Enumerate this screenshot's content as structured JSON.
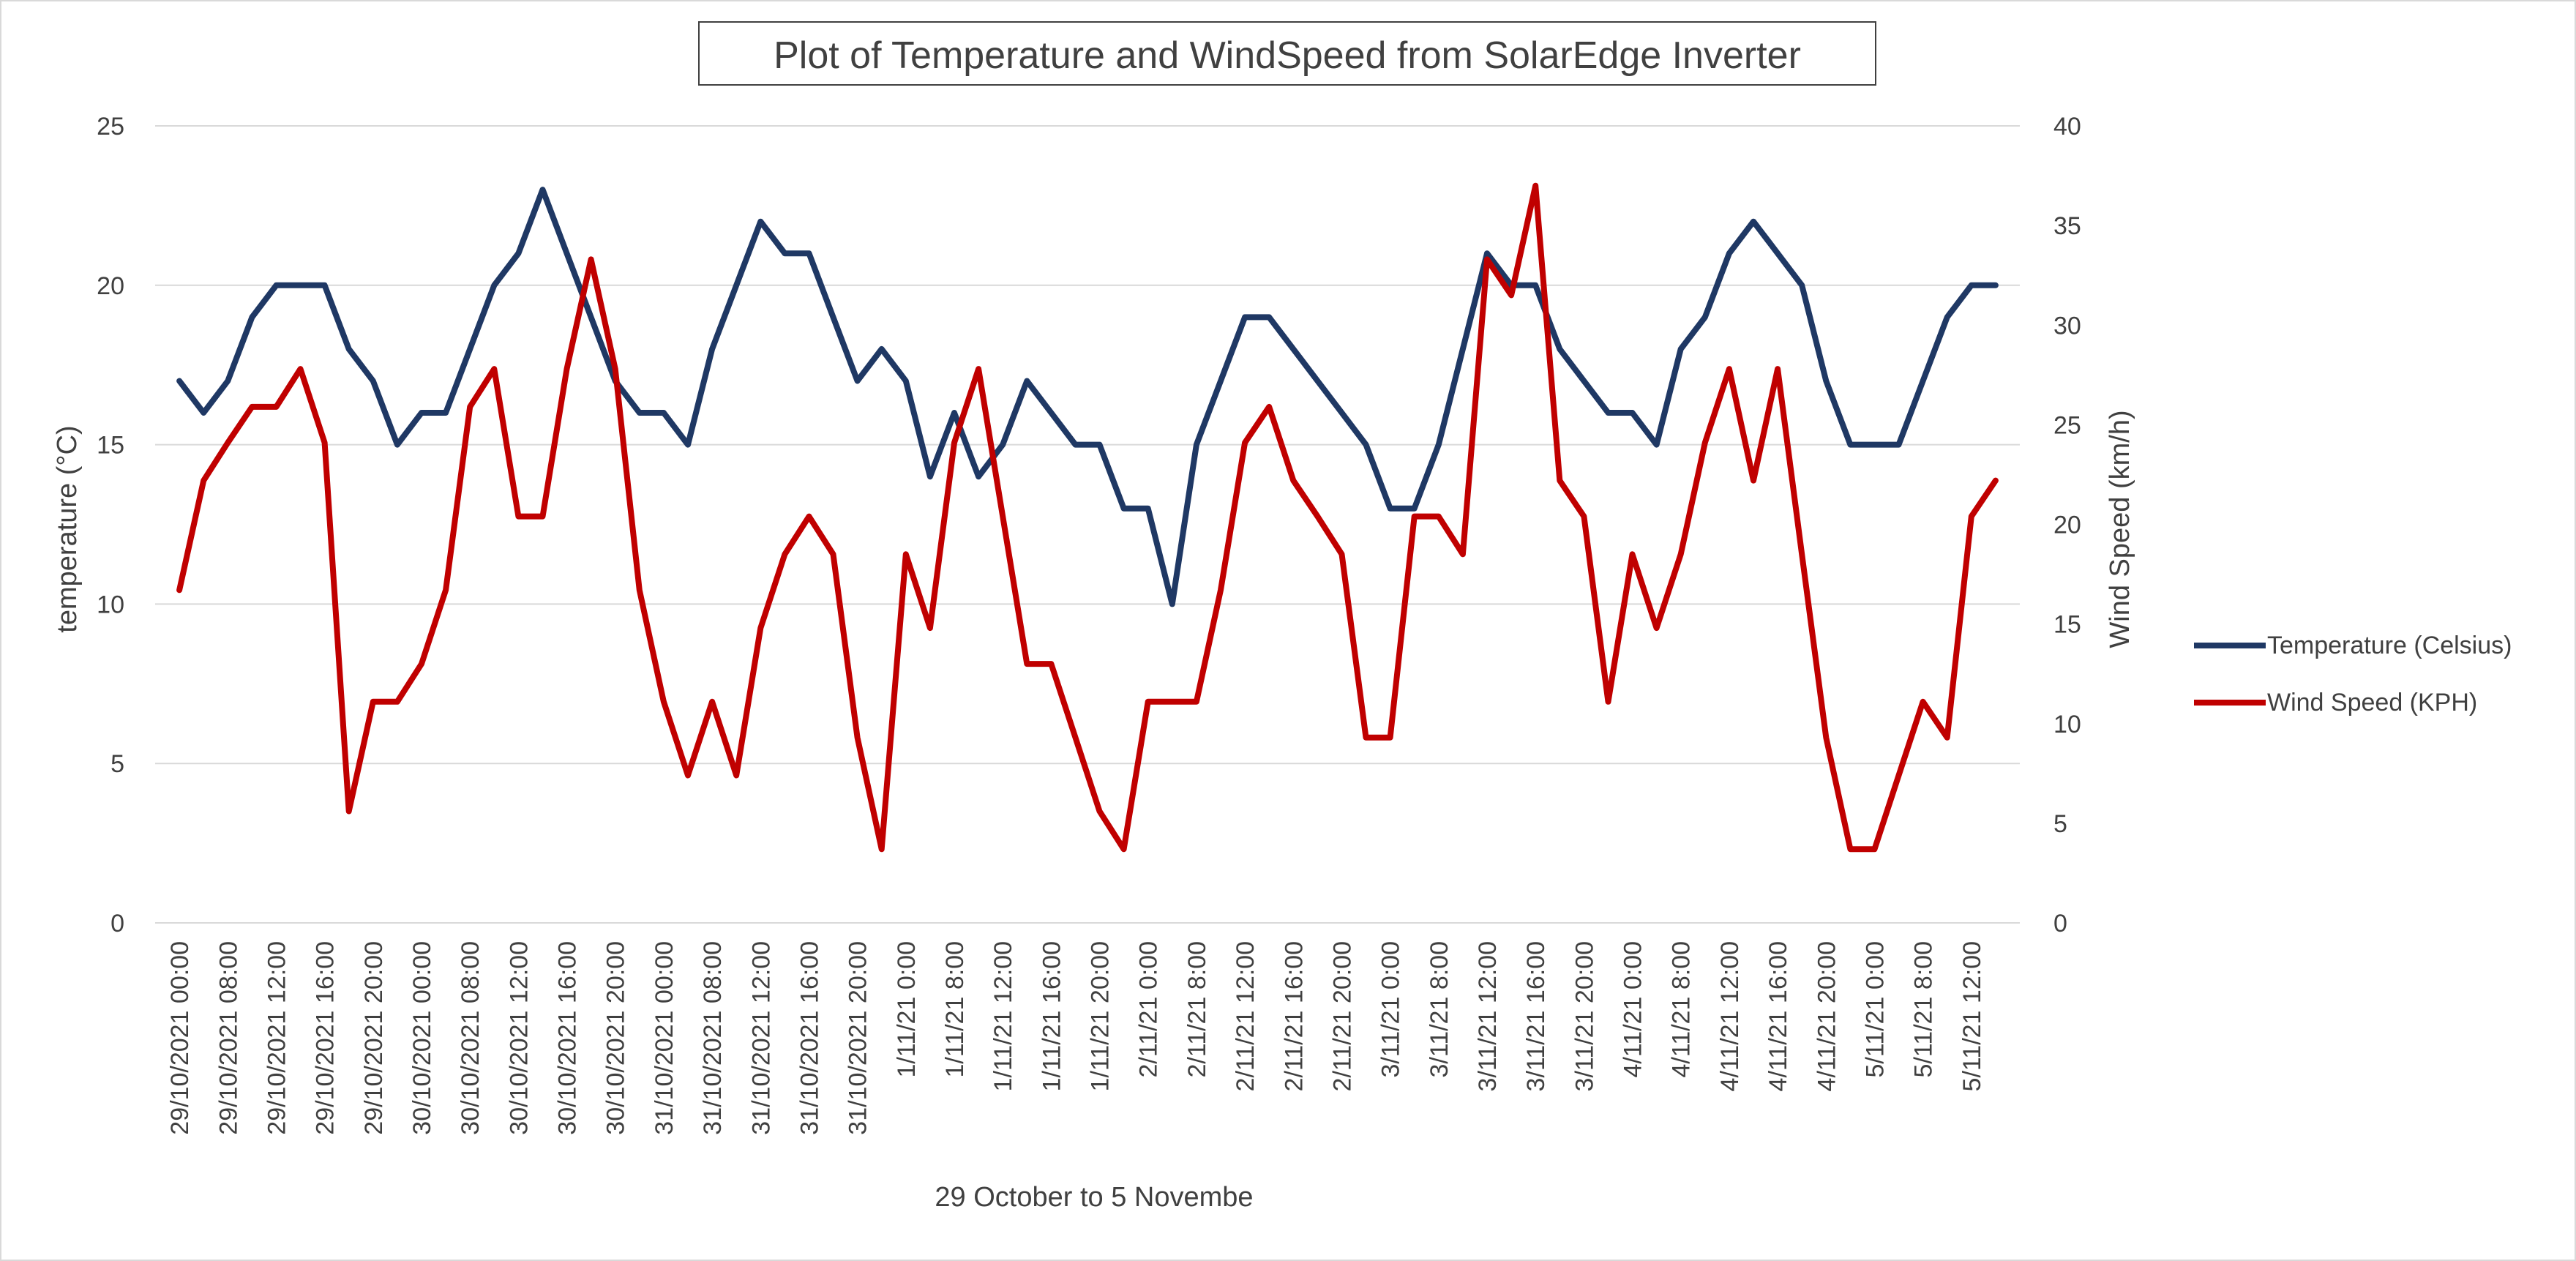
{
  "chart_data": {
    "type": "line",
    "title": "Plot of Temperature and WindSpeed from SolarEdge Inverter",
    "xlabel": "29 October to 5 Novembe",
    "ylabel": "temperature (°C)",
    "y2label": "Wind Speed (km/h)",
    "ylim": [
      0,
      25
    ],
    "y2lim": [
      0,
      40
    ],
    "yticks": [
      "0",
      "5",
      "10",
      "15",
      "20",
      "25"
    ],
    "y2ticks": [
      "0",
      "5",
      "10",
      "15",
      "20",
      "25",
      "30",
      "35",
      "40"
    ],
    "grid": true,
    "legend": "right",
    "x_tick_labels": [
      "29/10/2021 00:00",
      "29/10/2021 08:00",
      "29/10/2021 12:00",
      "29/10/2021 16:00",
      "29/10/2021 20:00",
      "30/10/2021 00:00",
      "30/10/2021 08:00",
      "30/10/2021 12:00",
      "30/10/2021 16:00",
      "30/10/2021 20:00",
      "31/10/2021 00:00",
      "31/10/2021 08:00",
      "31/10/2021 12:00",
      "31/10/2021 16:00",
      "31/10/2021 20:00",
      "1/11/21 0:00",
      "1/11/21 8:00",
      "1/11/21 12:00",
      "1/11/21 16:00",
      "1/11/21 20:00",
      "2/11/21 0:00",
      "2/11/21 8:00",
      "2/11/21 12:00",
      "2/11/21 16:00",
      "2/11/21 20:00",
      "3/11/21 0:00",
      "3/11/21 8:00",
      "3/11/21 12:00",
      "3/11/21 16:00",
      "3/11/21 20:00",
      "4/11/21 0:00",
      "4/11/21 8:00",
      "4/11/21 12:00",
      "4/11/21 16:00",
      "4/11/21 20:00",
      "5/11/21 0:00",
      "5/11/21 8:00",
      "5/11/21 12:00"
    ],
    "series": [
      {
        "name": "Temperature (Celsius)",
        "axis": "left",
        "color": "#1f3864",
        "values": [
          17,
          16,
          17,
          19,
          20,
          20,
          20,
          18,
          17,
          15,
          16,
          16,
          18,
          20,
          21,
          23,
          21,
          19,
          17,
          16,
          16,
          15,
          18,
          20,
          22,
          21,
          21,
          19,
          17,
          18,
          17,
          14,
          16,
          14,
          15,
          17,
          16,
          15,
          15,
          13,
          13,
          10,
          15,
          17,
          19,
          19,
          18,
          17,
          16,
          15,
          13,
          13,
          15,
          18,
          21,
          20,
          20,
          18,
          17,
          16,
          16,
          15,
          18,
          19,
          21,
          22,
          21,
          20,
          17,
          15,
          15,
          15,
          17,
          19,
          20,
          20
        ]
      },
      {
        "name": "Wind Speed (KPH)",
        "axis": "right",
        "color": "#c00000",
        "values": [
          16.7,
          22.2,
          24.1,
          25.9,
          25.9,
          27.8,
          24.1,
          5.6,
          11.1,
          11.1,
          13,
          16.7,
          25.9,
          27.8,
          20.4,
          20.4,
          27.8,
          33.3,
          27.8,
          16.7,
          11.1,
          7.4,
          11.1,
          7.4,
          14.8,
          18.5,
          20.4,
          18.5,
          9.3,
          3.7,
          18.5,
          14.8,
          24.1,
          27.8,
          20.4,
          13,
          13,
          9.3,
          5.6,
          3.7,
          11.1,
          11.1,
          11.1,
          16.7,
          24.1,
          25.9,
          22.2,
          20.4,
          18.5,
          9.3,
          9.3,
          20.4,
          20.4,
          18.5,
          33.3,
          31.5,
          37,
          22.2,
          20.4,
          11.1,
          18.5,
          14.8,
          18.5,
          24.1,
          27.8,
          22.2,
          27.8,
          18.5,
          9.3,
          3.7,
          3.7,
          7.4,
          11.1,
          9.3,
          20.4,
          22.2
        ]
      }
    ]
  }
}
